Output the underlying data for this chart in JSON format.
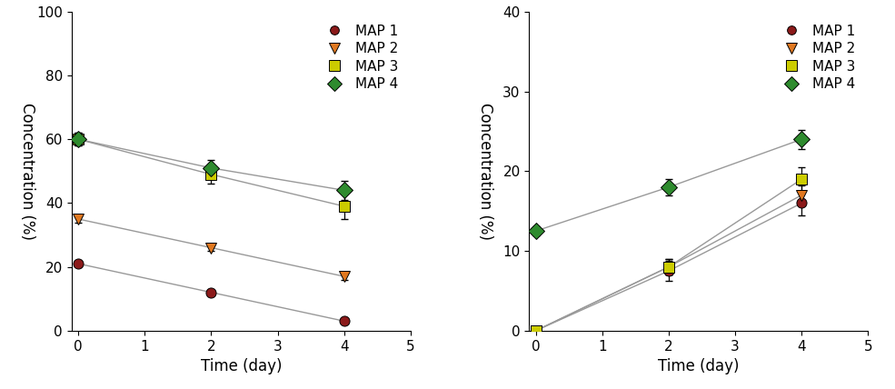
{
  "left_chart": {
    "xlabel": "Time (day)",
    "ylabel": "Concentration (%)",
    "xlim": [
      -0.1,
      5
    ],
    "ylim": [
      0,
      100
    ],
    "yticks": [
      0,
      20,
      40,
      60,
      80,
      100
    ],
    "xticks": [
      0,
      1,
      2,
      3,
      4,
      5
    ],
    "series": [
      {
        "label": "MAP 1",
        "color": "#8B1A1A",
        "marker": "o",
        "markersize": 8,
        "x": [
          0,
          2,
          4
        ],
        "y": [
          21,
          12,
          3
        ],
        "yerr": [
          0.8,
          0.8,
          0.5
        ]
      },
      {
        "label": "MAP 2",
        "color": "#E07820",
        "marker": "v",
        "markersize": 9,
        "x": [
          0,
          2,
          4
        ],
        "y": [
          35,
          26,
          17
        ],
        "yerr": [
          1.2,
          1.0,
          1.0
        ]
      },
      {
        "label": "MAP 3",
        "color": "#CCCC00",
        "marker": "s",
        "markersize": 9,
        "x": [
          0,
          2,
          4
        ],
        "y": [
          60,
          49,
          39
        ],
        "yerr": [
          2.0,
          3.0,
          4.0
        ]
      },
      {
        "label": "MAP 4",
        "color": "#2E8B2E",
        "marker": "D",
        "markersize": 9,
        "x": [
          0,
          2,
          4
        ],
        "y": [
          60,
          51,
          44
        ],
        "yerr": [
          2.0,
          2.5,
          3.0
        ]
      }
    ]
  },
  "right_chart": {
    "xlabel": "Time (day)",
    "ylabel": "Concentration (%)",
    "xlim": [
      -0.1,
      5
    ],
    "ylim": [
      0,
      40
    ],
    "yticks": [
      0,
      10,
      20,
      30,
      40
    ],
    "xticks": [
      0,
      1,
      2,
      3,
      4,
      5
    ],
    "series": [
      {
        "label": "MAP 1",
        "color": "#8B1A1A",
        "marker": "o",
        "markersize": 8,
        "x": [
          0,
          2,
          4
        ],
        "y": [
          0,
          7.5,
          16
        ],
        "yerr": [
          0.2,
          1.2,
          1.5
        ]
      },
      {
        "label": "MAP 2",
        "color": "#E07820",
        "marker": "v",
        "markersize": 9,
        "x": [
          0,
          2,
          4
        ],
        "y": [
          0,
          8,
          17
        ],
        "yerr": [
          0.2,
          1.0,
          1.2
        ]
      },
      {
        "label": "MAP 3",
        "color": "#CCCC00",
        "marker": "s",
        "markersize": 9,
        "x": [
          0,
          2,
          4
        ],
        "y": [
          0,
          8,
          19
        ],
        "yerr": [
          0.2,
          1.0,
          1.5
        ]
      },
      {
        "label": "MAP 4",
        "color": "#2E8B2E",
        "marker": "D",
        "markersize": 9,
        "x": [
          0,
          2,
          4
        ],
        "y": [
          12.5,
          18,
          24
        ],
        "yerr": [
          0.6,
          1.0,
          1.2
        ]
      }
    ]
  },
  "line_color": "#999999",
  "ylabel_fontsize": 12,
  "xlabel_fontsize": 12,
  "tick_fontsize": 11,
  "legend_fontsize": 11
}
